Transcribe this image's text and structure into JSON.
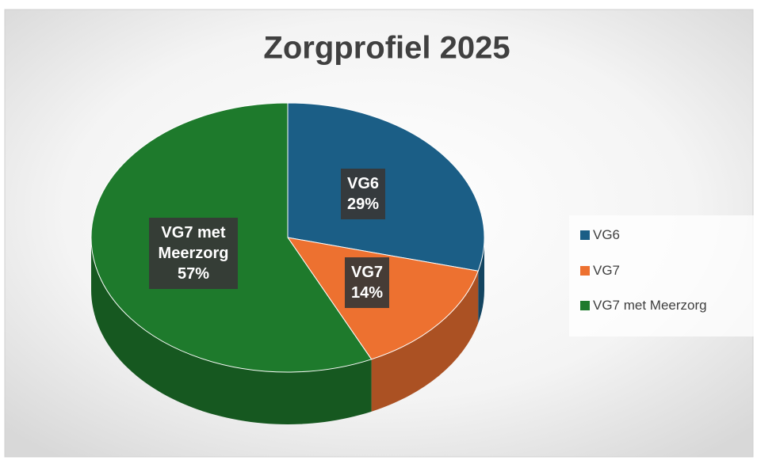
{
  "chart_data": {
    "type": "pie",
    "title": "Zorgprofiel 2025",
    "categories": [
      "VG6",
      "VG7",
      "VG7 met Meerzorg"
    ],
    "values": [
      29,
      14,
      57
    ],
    "value_labels": [
      "29%",
      "14%",
      "57%"
    ],
    "colors": [
      "#1b5e86",
      "#ed7130",
      "#1e7a2c"
    ],
    "legend": "right"
  }
}
